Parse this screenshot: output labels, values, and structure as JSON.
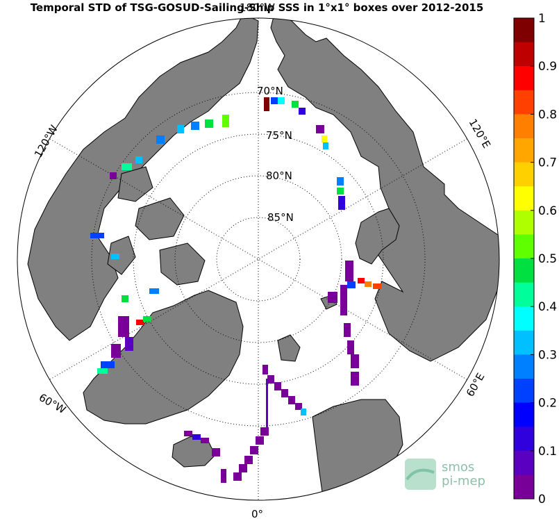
{
  "title": "Temporal STD of TSG-GOSUD-Sailing-Ship SSS in 1°x1° boxes over 2012-2015",
  "latitude_labels": [
    "70°N",
    "75°N",
    "80°N",
    "85°N"
  ],
  "longitude_labels": {
    "top": "180°W",
    "bottom": "0°",
    "upper_left": "120°W",
    "lower_left": "60°W",
    "upper_right": "120°E",
    "lower_right": "60°E"
  },
  "colorbar": {
    "ticks": [
      "1",
      "0.9",
      "0.8",
      "0.7",
      "0.6",
      "0.5",
      "0.4",
      "0.3",
      "0.2",
      "0.1",
      "0"
    ],
    "colors": [
      "#7f0000",
      "#bf0000",
      "#ff0000",
      "#ff4000",
      "#ff8000",
      "#ffa600",
      "#ffd000",
      "#ffff00",
      "#b0ff00",
      "#60ff00",
      "#00e040",
      "#00ff9a",
      "#00ffff",
      "#00c0ff",
      "#0080ff",
      "#0040ff",
      "#0000ff",
      "#3000dd",
      "#5a00c0",
      "#780098"
    ]
  },
  "logo": {
    "line1": "smos",
    "line2": "pi-mep"
  },
  "colors": {
    "land": "#808080",
    "ocean": "#ffffff",
    "coast": "#000000"
  }
}
